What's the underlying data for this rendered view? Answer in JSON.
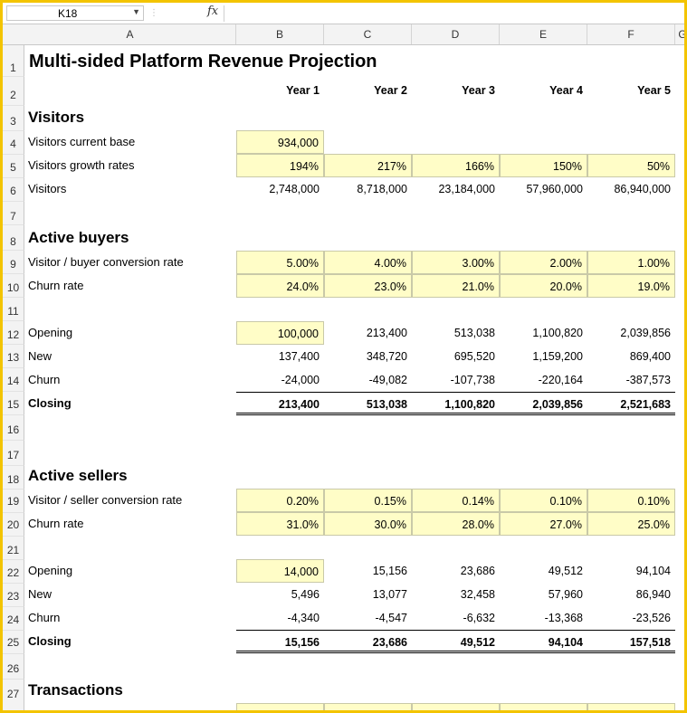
{
  "formula_bar": {
    "name_box": "K18",
    "fx": "fx"
  },
  "columns": [
    "A",
    "B",
    "C",
    "D",
    "E",
    "F",
    "G"
  ],
  "rows": [
    "1",
    "2",
    "3",
    "4",
    "5",
    "6",
    "7",
    "8",
    "9",
    "10",
    "11",
    "12",
    "13",
    "14",
    "15",
    "16",
    "17",
    "18",
    "19",
    "20",
    "21",
    "22",
    "23",
    "24",
    "25",
    "26",
    "27"
  ],
  "sheet": {
    "title": "Multi-sided Platform Revenue Projection",
    "years": [
      "Year 1",
      "Year 2",
      "Year 3",
      "Year 4",
      "Year 5"
    ],
    "visitors": {
      "heading": "Visitors",
      "current_base_label": "Visitors current base",
      "current_base": "934,000",
      "growth_label": "Visitors growth rates",
      "growth": [
        "194%",
        "217%",
        "166%",
        "150%",
        "50%"
      ],
      "visitors_label": "Visitors",
      "visitors": [
        "2,748,000",
        "8,718,000",
        "23,184,000",
        "57,960,000",
        "86,940,000"
      ]
    },
    "buyers": {
      "heading": "Active buyers",
      "conversion_label": "Visitor / buyer conversion rate",
      "conversion": [
        "5.00%",
        "4.00%",
        "3.00%",
        "2.00%",
        "1.00%"
      ],
      "churn_rate_label": "Churn rate",
      "churn_rate": [
        "24.0%",
        "23.0%",
        "21.0%",
        "20.0%",
        "19.0%"
      ],
      "opening_label": "Opening",
      "opening": [
        "100,000",
        "213,400",
        "513,038",
        "1,100,820",
        "2,039,856"
      ],
      "new_label": "New",
      "new": [
        "137,400",
        "348,720",
        "695,520",
        "1,159,200",
        "869,400"
      ],
      "churn_label": "Churn",
      "churn": [
        "-24,000",
        "-49,082",
        "-107,738",
        "-220,164",
        "-387,573"
      ],
      "closing_label": "Closing",
      "closing": [
        "213,400",
        "513,038",
        "1,100,820",
        "2,039,856",
        "2,521,683"
      ]
    },
    "sellers": {
      "heading": "Active sellers",
      "conversion_label": "Visitor / seller conversion rate",
      "conversion": [
        "0.20%",
        "0.15%",
        "0.14%",
        "0.10%",
        "0.10%"
      ],
      "churn_rate_label": "Churn rate",
      "churn_rate": [
        "31.0%",
        "30.0%",
        "28.0%",
        "27.0%",
        "25.0%"
      ],
      "opening_label": "Opening",
      "opening": [
        "14,000",
        "15,156",
        "23,686",
        "49,512",
        "94,104"
      ],
      "new_label": "New",
      "new": [
        "5,496",
        "13,077",
        "32,458",
        "57,960",
        "86,940"
      ],
      "churn_label": "Churn",
      "churn": [
        "-4,340",
        "-4,547",
        "-6,632",
        "-13,368",
        "-23,526"
      ],
      "closing_label": "Closing",
      "closing": [
        "15,156",
        "23,686",
        "49,512",
        "94,104",
        "157,518"
      ]
    },
    "transactions": {
      "heading": "Transactions"
    }
  }
}
